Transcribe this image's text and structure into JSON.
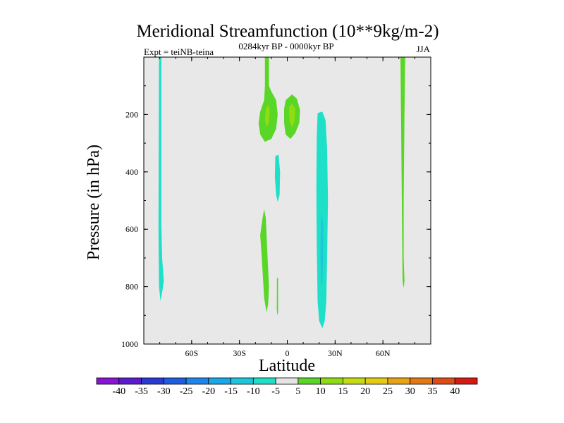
{
  "chart_data": {
    "type": "contour",
    "title": "Meridional Streamfunction (10**9kg/m-2)",
    "subtitle_left": "Expt = teiNB-teina",
    "subtitle_center": "0284kyr BP - 0000kyr BP",
    "subtitle_right": "JJA",
    "xlabel": "Latitude",
    "ylabel": "Pressure (in hPa)",
    "xlim": [
      -90,
      90
    ],
    "ylim": [
      0,
      1000
    ],
    "y_inverted": true,
    "xticks": [
      {
        "value": -60,
        "label": "60S"
      },
      {
        "value": -30,
        "label": "30S"
      },
      {
        "value": 0,
        "label": "0"
      },
      {
        "value": 30,
        "label": "30N"
      },
      {
        "value": 60,
        "label": "60N"
      }
    ],
    "yticks": [
      {
        "value": 200,
        "label": "200"
      },
      {
        "value": 400,
        "label": "400"
      },
      {
        "value": 600,
        "label": "600"
      },
      {
        "value": 800,
        "label": "800"
      },
      {
        "value": 1000,
        "label": "1000"
      }
    ],
    "background_color": "#e8e8e8",
    "colorbar": {
      "levels": [
        "-40",
        "-35",
        "-30",
        "-25",
        "-20",
        "-15",
        "-10",
        "-5",
        "5",
        "10",
        "15",
        "20",
        "25",
        "30",
        "35",
        "40"
      ],
      "colors": [
        "#8a14d4",
        "#5a1ccc",
        "#2a3ad0",
        "#1e5ce0",
        "#1e86ea",
        "#18a8e8",
        "#1ec6dc",
        "#1ee0c8",
        "#e4e4e4",
        "#5ad626",
        "#90dc14",
        "#c4dc14",
        "#e4cc14",
        "#e8a414",
        "#e47814",
        "#dc4c14",
        "#d41a12"
      ]
    },
    "contour_regions": [
      {
        "name": "sh-highlat-negative",
        "level": "-10..-5",
        "color": "#1ee0c8",
        "points": [
          [
            -80.5,
            0
          ],
          [
            -79,
            0
          ],
          [
            -79,
            580
          ],
          [
            -78.5,
            700
          ],
          [
            -77.5,
            780
          ],
          [
            -78.5,
            820
          ],
          [
            -79.5,
            850
          ],
          [
            -80.5,
            800
          ],
          [
            -80.8,
            600
          ]
        ]
      },
      {
        "name": "upper-positive-south-stem",
        "level": "5..10",
        "color": "#5ad626",
        "points": [
          [
            -14,
            0
          ],
          [
            -11.5,
            0
          ],
          [
            -11.5,
            100
          ],
          [
            -10,
            120
          ],
          [
            -7,
            150
          ],
          [
            -6,
            200
          ],
          [
            -7,
            250
          ],
          [
            -10,
            285
          ],
          [
            -14,
            295
          ],
          [
            -17,
            270
          ],
          [
            -18,
            230
          ],
          [
            -17,
            190
          ],
          [
            -14.5,
            150
          ],
          [
            -14,
            100
          ]
        ]
      },
      {
        "name": "upper-positive-north-lobe",
        "level": "5..10",
        "color": "#5ad626",
        "points": [
          [
            -1,
            150
          ],
          [
            3,
            130
          ],
          [
            6,
            145
          ],
          [
            8,
            185
          ],
          [
            7.5,
            230
          ],
          [
            5,
            265
          ],
          [
            2,
            285
          ],
          [
            -1,
            270
          ],
          [
            -2,
            230
          ],
          [
            -2,
            180
          ]
        ]
      },
      {
        "name": "upper-positive-south-core",
        "level": "10..15",
        "color": "#90dc14",
        "points": [
          [
            -13.5,
            180
          ],
          [
            -12,
            165
          ],
          [
            -11,
            185
          ],
          [
            -11.5,
            225
          ],
          [
            -13,
            245
          ],
          [
            -14,
            220
          ]
        ]
      },
      {
        "name": "upper-positive-north-core",
        "level": "10..15",
        "color": "#90dc14",
        "points": [
          [
            1,
            175
          ],
          [
            3,
            162
          ],
          [
            5,
            180
          ],
          [
            4.5,
            225
          ],
          [
            3,
            245
          ],
          [
            1.5,
            225
          ]
        ]
      },
      {
        "name": "upper-negative-small",
        "level": "-10..-5",
        "color": "#1ee0c8",
        "points": [
          [
            -7.5,
            345
          ],
          [
            -5.5,
            340
          ],
          [
            -4.5,
            400
          ],
          [
            -4.8,
            480
          ],
          [
            -6,
            505
          ],
          [
            -7,
            480
          ],
          [
            -7.8,
            420
          ]
        ]
      },
      {
        "name": "lower-positive-tongue",
        "level": "5..10",
        "color": "#5ad626",
        "points": [
          [
            -14.5,
            530
          ],
          [
            -13.5,
            560
          ],
          [
            -12.5,
            680
          ],
          [
            -11.5,
            800
          ],
          [
            -12,
            860
          ],
          [
            -13,
            890
          ],
          [
            -14.5,
            840
          ],
          [
            -16,
            700
          ],
          [
            -17,
            620
          ],
          [
            -15.5,
            560
          ]
        ]
      },
      {
        "name": "lower-positive-sliver",
        "level": "5..10",
        "color": "#5ad626",
        "points": [
          [
            -6.5,
            770
          ],
          [
            -5.8,
            770
          ],
          [
            -5.8,
            890
          ],
          [
            -6.2,
            900
          ],
          [
            -6.6,
            880
          ]
        ]
      },
      {
        "name": "tropical-negative-cell",
        "level": "-10..-5",
        "color": "#1ee0c8",
        "points": [
          [
            19,
            195
          ],
          [
            22,
            190
          ],
          [
            24,
            220
          ],
          [
            25,
            320
          ],
          [
            25.5,
            500
          ],
          [
            25,
            700
          ],
          [
            24.5,
            850
          ],
          [
            23.5,
            920
          ],
          [
            22,
            945
          ],
          [
            20,
            920
          ],
          [
            19,
            850
          ],
          [
            18.5,
            650
          ],
          [
            18.2,
            450
          ],
          [
            18.5,
            280
          ]
        ]
      },
      {
        "name": "tropical-negative-core",
        "level": "-15..-10",
        "color": "#1ec6dc",
        "points": [
          [
            21.5,
            540
          ],
          [
            22.5,
            580
          ],
          [
            22.5,
            700
          ],
          [
            22,
            790
          ],
          [
            21.3,
            800
          ],
          [
            20.8,
            700
          ],
          [
            21,
            600
          ]
        ]
      },
      {
        "name": "nh-highlat-positive",
        "level": "5..10",
        "color": "#5ad626",
        "points": [
          [
            71,
            0
          ],
          [
            74,
            0
          ],
          [
            73.5,
            200
          ],
          [
            73,
            500
          ],
          [
            73,
            700
          ],
          [
            73.5,
            780
          ],
          [
            73,
            805
          ],
          [
            72.3,
            780
          ],
          [
            72,
            600
          ],
          [
            71.5,
            300
          ]
        ]
      }
    ]
  }
}
